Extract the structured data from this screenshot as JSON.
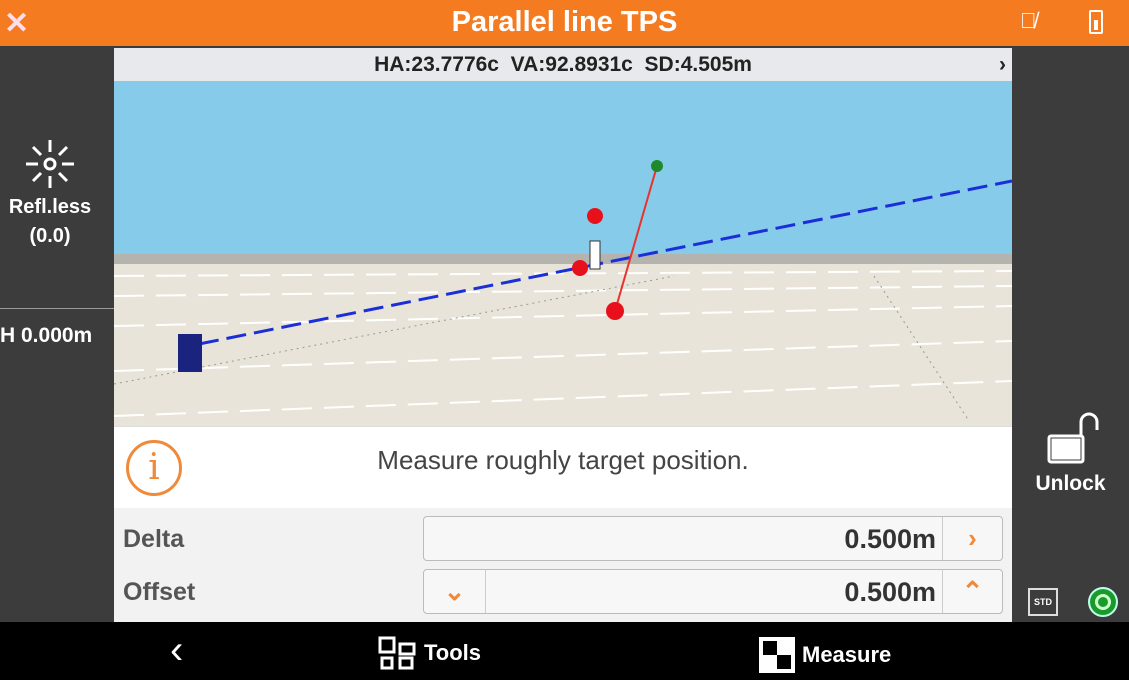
{
  "header": {
    "title": "Parallel line TPS",
    "logo_icon": "x-logo-icon",
    "mic_icon": "mic-off-icon",
    "battery_icon": "battery-icon",
    "accent": "#f47b20"
  },
  "status_bar": {
    "text": "HA:23.7776c  VA:92.8931c  SD:4.505m",
    "chevron": "›"
  },
  "left_panel": {
    "mode_label": "Refl.less",
    "mode_value": "(0.0)",
    "height": "H 0.000m"
  },
  "right_panel": {
    "unlock_label": "Unlock",
    "std_label": "STD"
  },
  "message": {
    "icon": "i",
    "text": "Measure roughly target position."
  },
  "form": {
    "delta_label": "Delta",
    "delta_value": "0.500m",
    "offset_label": "Offset",
    "offset_value": "0.500m"
  },
  "nav": {
    "back": "‹",
    "tools": "Tools",
    "measure": "Measure"
  }
}
